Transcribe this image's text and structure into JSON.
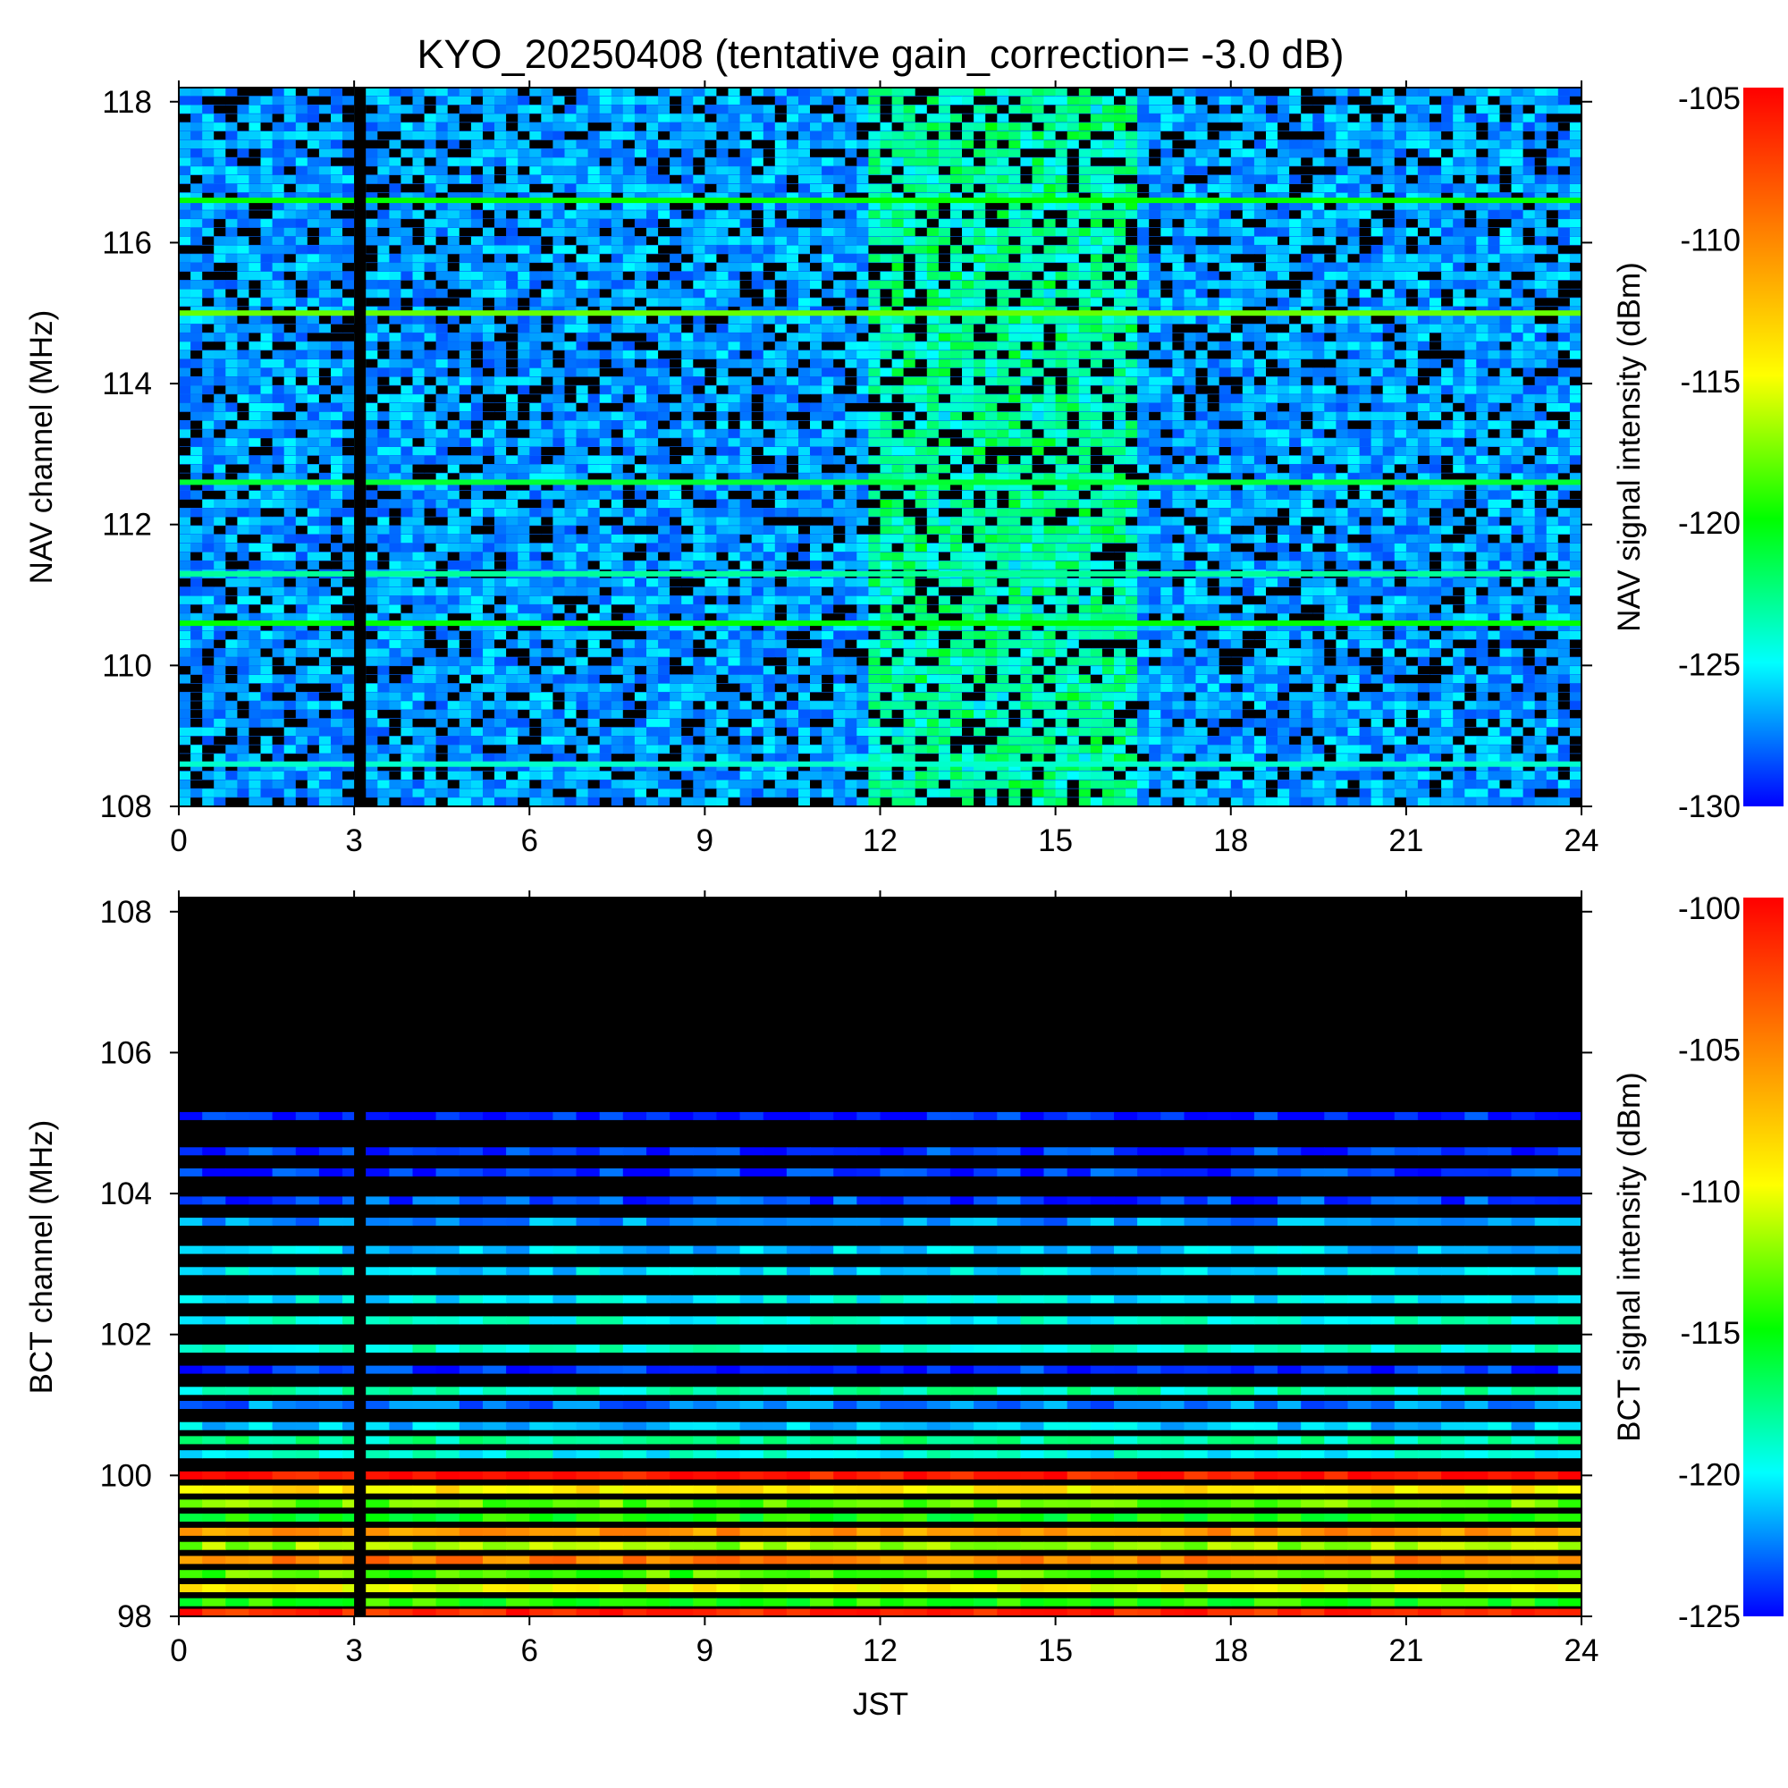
{
  "title": "KYO_20250408 (tentative gain_correction= -3.0 dB)",
  "colors": {
    "colormap": [
      "#0000ff",
      "#00ffff",
      "#00ff00",
      "#ffff00",
      "#ff8000",
      "#ff0000"
    ],
    "no_data": "#000000"
  },
  "chart_data": [
    {
      "type": "heatmap",
      "name": "NAV",
      "xlabel": "",
      "ylabel": "NAV channel (MHz)",
      "colorbar_label": "NAV signal intensity (dBm)",
      "xlim": [
        0,
        24
      ],
      "ylim": [
        108,
        118.2
      ],
      "xticks": [
        "0",
        "3",
        "6",
        "9",
        "12",
        "15",
        "18",
        "21",
        "24"
      ],
      "yticks": [
        "108",
        "110",
        "112",
        "114",
        "116",
        "118"
      ],
      "colorbar_range": [
        -130,
        -105
      ],
      "colorbar_ticks": [
        "-105",
        "-110",
        "-115",
        "-120",
        "-125",
        "-130"
      ],
      "data_gap_jst": [
        3.0,
        3.2
      ],
      "enhanced_period_jst": [
        11.8,
        16.5
      ],
      "strong_channels": [
        {
          "freq_mhz": 116.6,
          "dbm": -120
        },
        {
          "freq_mhz": 115.0,
          "dbm": -118
        },
        {
          "freq_mhz": 112.6,
          "dbm": -121
        },
        {
          "freq_mhz": 111.3,
          "dbm": -123
        },
        {
          "freq_mhz": 110.6,
          "dbm": -120
        },
        {
          "freq_mhz": 108.6,
          "dbm": -124
        }
      ]
    },
    {
      "type": "heatmap",
      "name": "BCT",
      "xlabel": "JST",
      "ylabel": "BCT channel (MHz)",
      "colorbar_label": "BCT signal intensity (dBm)",
      "xlim": [
        0,
        24
      ],
      "ylim": [
        98,
        108.2
      ],
      "xticks": [
        "0",
        "3",
        "6",
        "9",
        "12",
        "15",
        "18",
        "21",
        "24"
      ],
      "yticks": [
        "98",
        "100",
        "102",
        "104",
        "106",
        "108"
      ],
      "colorbar_range": [
        -125,
        -100
      ],
      "colorbar_ticks": [
        "-100",
        "-105",
        "-110",
        "-115",
        "-120",
        "-125"
      ],
      "data_gap_jst": [
        3.0,
        3.2
      ],
      "channels": [
        {
          "freq_mhz": 105.1,
          "dbm": -124.5
        },
        {
          "freq_mhz": 104.6,
          "dbm": -124.0
        },
        {
          "freq_mhz": 104.3,
          "dbm": -124.0
        },
        {
          "freq_mhz": 103.9,
          "dbm": -123.5
        },
        {
          "freq_mhz": 103.6,
          "dbm": -122.0
        },
        {
          "freq_mhz": 103.2,
          "dbm": -121.0
        },
        {
          "freq_mhz": 102.9,
          "dbm": -120.5
        },
        {
          "freq_mhz": 102.5,
          "dbm": -120.0
        },
        {
          "freq_mhz": 102.2,
          "dbm": -119.5
        },
        {
          "freq_mhz": 101.8,
          "dbm": -119.0
        },
        {
          "freq_mhz": 101.5,
          "dbm": -124.0
        },
        {
          "freq_mhz": 101.2,
          "dbm": -118.5
        },
        {
          "freq_mhz": 101.0,
          "dbm": -122.5
        },
        {
          "freq_mhz": 100.7,
          "dbm": -121.0
        },
        {
          "freq_mhz": 100.5,
          "dbm": -118.0
        },
        {
          "freq_mhz": 100.3,
          "dbm": -119.5
        },
        {
          "freq_mhz": 100.0,
          "dbm": -101.0
        },
        {
          "freq_mhz": 99.8,
          "dbm": -109.0
        },
        {
          "freq_mhz": 99.6,
          "dbm": -113.0
        },
        {
          "freq_mhz": 99.4,
          "dbm": -115.0
        },
        {
          "freq_mhz": 99.2,
          "dbm": -106.0
        },
        {
          "freq_mhz": 99.0,
          "dbm": -112.0
        },
        {
          "freq_mhz": 98.8,
          "dbm": -105.0
        },
        {
          "freq_mhz": 98.6,
          "dbm": -113.5
        },
        {
          "freq_mhz": 98.4,
          "dbm": -110.0
        },
        {
          "freq_mhz": 98.2,
          "dbm": -114.5
        },
        {
          "freq_mhz": 98.05,
          "dbm": -101.5
        }
      ]
    }
  ]
}
